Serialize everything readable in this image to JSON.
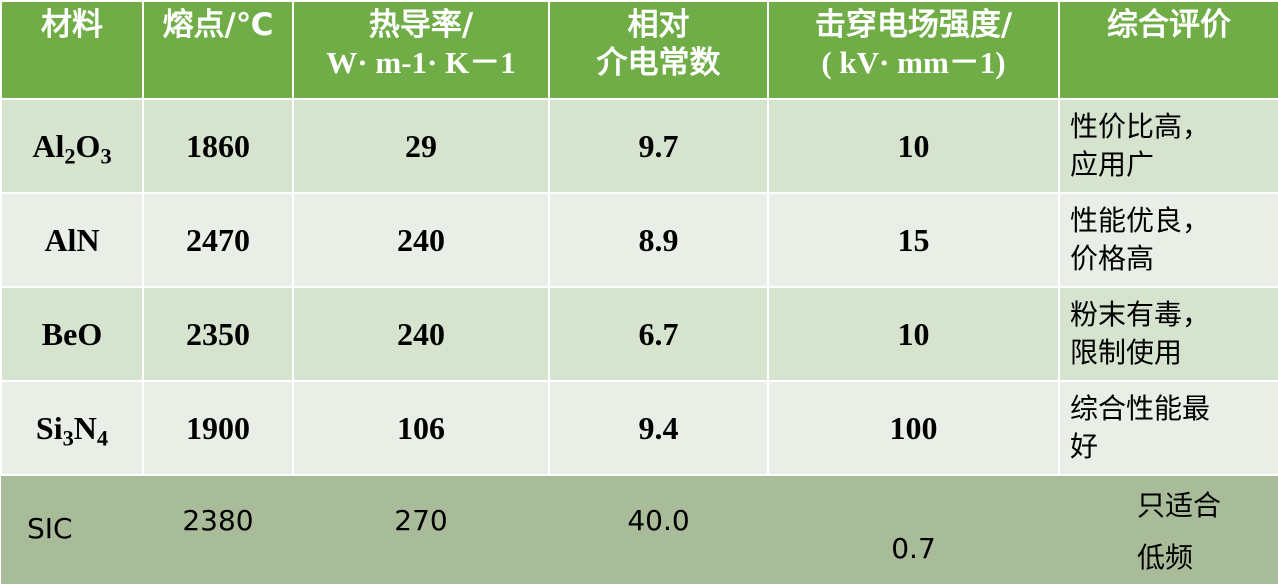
{
  "table": {
    "headers": [
      {
        "lines": [
          "材料"
        ]
      },
      {
        "lines": [
          "熔点/℃"
        ]
      },
      {
        "lines": [
          "热导率/",
          "W· m-1· K－1"
        ]
      },
      {
        "lines": [
          "相对",
          "介电常数"
        ]
      },
      {
        "lines": [
          "击穿电场强度/",
          "( kV· mm－1)"
        ]
      },
      {
        "lines": [
          "综合评价"
        ]
      }
    ],
    "rows": [
      {
        "material": [
          {
            "t": "Al"
          },
          {
            "sub": "2"
          },
          {
            "t": "O"
          },
          {
            "sub": "3"
          }
        ],
        "melting_point": "1860",
        "thermal_conductivity": "29",
        "dielectric_constant": "9.7",
        "breakdown_field": "10",
        "evaluation": [
          "性价比高，",
          "应用广"
        ]
      },
      {
        "material": [
          {
            "t": "AlN"
          }
        ],
        "melting_point": "2470",
        "thermal_conductivity": "240",
        "dielectric_constant": "8.9",
        "breakdown_field": "15",
        "evaluation": [
          "性能优良，",
          "价格高"
        ]
      },
      {
        "material": [
          {
            "t": "BeO"
          }
        ],
        "melting_point": "2350",
        "thermal_conductivity": "240",
        "dielectric_constant": "6.7",
        "breakdown_field": "10",
        "evaluation": [
          "粉末有毒，",
          "限制使用"
        ]
      },
      {
        "material": [
          {
            "t": "Si"
          },
          {
            "sub": "3"
          },
          {
            "t": "N"
          },
          {
            "sub": "4"
          }
        ],
        "melting_point": "1900",
        "thermal_conductivity": "106",
        "dielectric_constant": "9.4",
        "breakdown_field": "100",
        "evaluation": [
          "综合性能最",
          "好"
        ]
      }
    ],
    "last_row": {
      "material": "SIC",
      "melting_point": "2380",
      "thermal_conductivity": "270",
      "dielectric_constant": "40.0",
      "breakdown_field": "0.7",
      "evaluation": [
        "只适合",
        "低频"
      ]
    }
  },
  "colors": {
    "header": "#70ad47",
    "row_odd": "#d5e3cf",
    "row_even": "#e9efe7",
    "last_row": "#a9bc9a"
  }
}
